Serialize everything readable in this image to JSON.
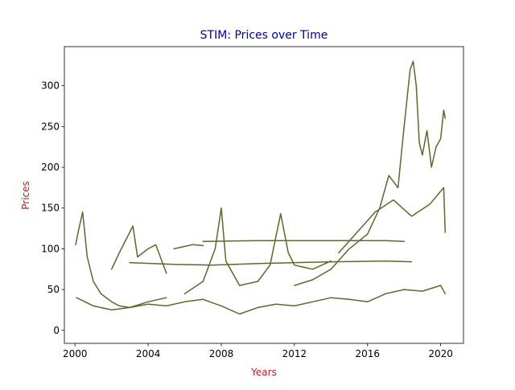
{
  "chart_data": {
    "type": "line",
    "title": "STIM: Prices over Time",
    "xlabel": "Years",
    "ylabel": "Prices",
    "xlim": [
      "1999-06-01",
      "2021-04-01"
    ],
    "ylim": [
      -16,
      348
    ],
    "x_ticks": [
      "2000",
      "2004",
      "2008",
      "2012",
      "2016",
      "2020"
    ],
    "y_ticks": [
      0,
      50,
      100,
      150,
      200,
      250,
      300
    ],
    "grid": false,
    "legend": "none",
    "colors": {
      "title": "#00008b",
      "axis_label": "#b22222",
      "series": "#556b2f"
    },
    "series": [
      {
        "description": "highest priced trace",
        "points": [
          [
            "2012-01-01",
            55
          ],
          [
            "2013-01-01",
            62
          ],
          [
            "2014-01-01",
            75
          ],
          [
            "2015-01-01",
            100
          ],
          [
            "2016-01-01",
            118
          ],
          [
            "2016-09-01",
            150
          ],
          [
            "2017-03-01",
            190
          ],
          [
            "2017-09-01",
            175
          ],
          [
            "2018-01-01",
            250
          ],
          [
            "2018-05-01",
            320
          ],
          [
            "2018-07-01",
            330
          ],
          [
            "2018-09-01",
            300
          ],
          [
            "2018-11-01",
            230
          ],
          [
            "2019-01-01",
            215
          ],
          [
            "2019-04-01",
            245
          ],
          [
            "2019-07-01",
            200
          ],
          [
            "2019-10-01",
            225
          ],
          [
            "2020-01-01",
            235
          ],
          [
            "2020-03-01",
            270
          ],
          [
            "2020-04-01",
            260
          ]
        ]
      },
      {
        "description": "early 2000 spike trace",
        "points": [
          [
            "2000-01-15",
            105
          ],
          [
            "2000-03-01",
            120
          ],
          [
            "2000-06-01",
            145
          ],
          [
            "2000-09-01",
            90
          ],
          [
            "2001-01-01",
            60
          ],
          [
            "2001-06-01",
            45
          ],
          [
            "2002-01-01",
            35
          ],
          [
            "2002-06-01",
            30
          ],
          [
            "2003-01-01",
            28
          ],
          [
            "2004-01-01",
            35
          ],
          [
            "2005-01-01",
            40
          ]
        ]
      },
      {
        "description": "2008 spike trace",
        "points": [
          [
            "2006-01-01",
            45
          ],
          [
            "2007-01-01",
            60
          ],
          [
            "2007-09-01",
            100
          ],
          [
            "2008-01-01",
            150
          ],
          [
            "2008-04-01",
            85
          ],
          [
            "2009-01-01",
            55
          ],
          [
            "2010-01-01",
            60
          ]
        ]
      },
      {
        "description": "2011 spike trace",
        "points": [
          [
            "2010-01-01",
            60
          ],
          [
            "2010-09-01",
            80
          ],
          [
            "2011-04-01",
            143
          ],
          [
            "2011-09-01",
            95
          ],
          [
            "2012-01-01",
            80
          ],
          [
            "2013-01-01",
            75
          ],
          [
            "2014-01-01",
            85
          ]
        ]
      },
      {
        "description": "flat trace near 110",
        "points": [
          [
            "2007-01-01",
            109
          ],
          [
            "2010-01-01",
            110
          ],
          [
            "2014-01-01",
            110
          ],
          [
            "2017-01-01",
            110
          ],
          [
            "2018-01-01",
            109
          ]
        ]
      },
      {
        "description": "flat trace near 83",
        "points": [
          [
            "2003-01-01",
            83
          ],
          [
            "2005-06-01",
            81
          ],
          [
            "2007-06-01",
            80
          ],
          [
            "2010-01-01",
            82
          ],
          [
            "2014-01-01",
            84
          ],
          [
            "2017-01-01",
            85
          ],
          [
            "2018-06-01",
            84
          ]
        ]
      },
      {
        "description": "2005 to 2007 trace near 103",
        "points": [
          [
            "2005-06-01",
            100
          ],
          [
            "2006-01-01",
            103
          ],
          [
            "2006-06-01",
            105
          ],
          [
            "2007-01-01",
            104
          ]
        ]
      },
      {
        "description": "2002 to 2004 trace",
        "points": [
          [
            "2002-01-01",
            75
          ],
          [
            "2002-06-01",
            95
          ],
          [
            "2003-03-01",
            128
          ],
          [
            "2003-06-01",
            90
          ],
          [
            "2004-01-01",
            100
          ],
          [
            "2004-06-01",
            105
          ],
          [
            "2005-01-01",
            70
          ]
        ]
      },
      {
        "description": "2015 to 2020 traces",
        "points": [
          [
            "2014-06-01",
            95
          ],
          [
            "2015-06-01",
            120
          ],
          [
            "2016-06-01",
            145
          ],
          [
            "2017-06-01",
            160
          ],
          [
            "2018-06-01",
            140
          ],
          [
            "2019-06-01",
            155
          ],
          [
            "2020-03-01",
            175
          ],
          [
            "2020-04-01",
            120
          ]
        ]
      },
      {
        "description": "dense low price band",
        "points": [
          [
            "2000-02-01",
            40
          ],
          [
            "2001-01-01",
            30
          ],
          [
            "2002-01-01",
            25
          ],
          [
            "2003-01-01",
            28
          ],
          [
            "2004-01-01",
            32
          ],
          [
            "2005-01-01",
            30
          ],
          [
            "2006-01-01",
            35
          ],
          [
            "2007-01-01",
            38
          ],
          [
            "2008-01-01",
            30
          ],
          [
            "2009-01-01",
            20
          ],
          [
            "2010-01-01",
            28
          ],
          [
            "2011-01-01",
            32
          ],
          [
            "2012-01-01",
            30
          ],
          [
            "2013-01-01",
            35
          ],
          [
            "2014-01-01",
            40
          ],
          [
            "2015-01-01",
            38
          ],
          [
            "2016-01-01",
            35
          ],
          [
            "2017-01-01",
            45
          ],
          [
            "2018-01-01",
            50
          ],
          [
            "2019-01-01",
            48
          ],
          [
            "2020-01-01",
            55
          ],
          [
            "2020-04-01",
            45
          ]
        ]
      }
    ]
  }
}
